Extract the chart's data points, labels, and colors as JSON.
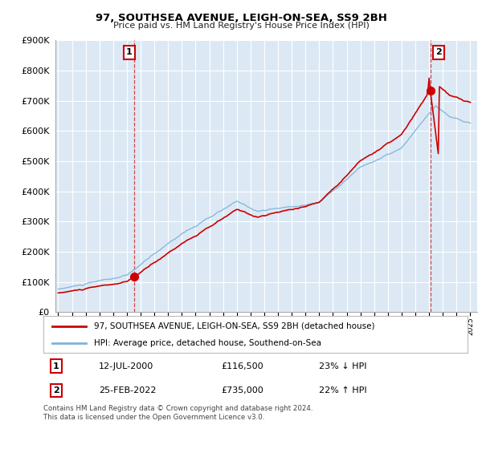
{
  "title": "97, SOUTHSEA AVENUE, LEIGH-ON-SEA, SS9 2BH",
  "subtitle": "Price paid vs. HM Land Registry's House Price Index (HPI)",
  "ylim": [
    0,
    900000
  ],
  "xlim_start": 1994.8,
  "xlim_end": 2025.5,
  "hpi_color": "#7eb4d8",
  "price_color": "#cc0000",
  "marker1_date_num": 2000.53,
  "marker1_price": 116500,
  "marker1_label": "1",
  "marker1_date_str": "12-JUL-2000",
  "marker1_price_str": "£116,500",
  "marker1_hpi_str": "23% ↓ HPI",
  "marker2_date_num": 2022.12,
  "marker2_price": 735000,
  "marker2_label": "2",
  "marker2_date_str": "25-FEB-2022",
  "marker2_price_str": "£735,000",
  "marker2_hpi_str": "22% ↑ HPI",
  "legend_label1": "97, SOUTHSEA AVENUE, LEIGH-ON-SEA, SS9 2BH (detached house)",
  "legend_label2": "HPI: Average price, detached house, Southend-on-Sea",
  "footnote": "Contains HM Land Registry data © Crown copyright and database right 2024.\nThis data is licensed under the Open Government Licence v3.0.",
  "xtick_years": [
    1995,
    1996,
    1997,
    1998,
    1999,
    2000,
    2001,
    2002,
    2003,
    2004,
    2005,
    2006,
    2007,
    2008,
    2009,
    2010,
    2011,
    2012,
    2013,
    2014,
    2015,
    2016,
    2017,
    2018,
    2019,
    2020,
    2021,
    2022,
    2023,
    2024,
    2025
  ],
  "background_color": "#ffffff",
  "chart_bg_color": "#dce9f5",
  "grid_color": "#ffffff"
}
